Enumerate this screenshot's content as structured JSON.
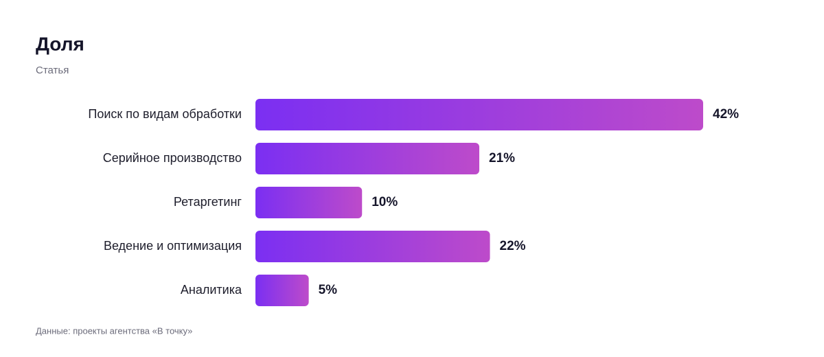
{
  "chart_data": {
    "type": "bar",
    "orientation": "horizontal",
    "title": "Доля",
    "subtitle": "Статья",
    "categories": [
      "Поиск по видам обработки",
      "Серийное производство",
      "Ретаргетинг",
      "Ведение и оптимизация",
      "Аналитика"
    ],
    "values": [
      42,
      21,
      10,
      22,
      5
    ],
    "value_labels": [
      "42%",
      "21%",
      "10%",
      "22%",
      "5%"
    ],
    "gradient": [
      "#7b2ff2",
      "#bd4bca"
    ],
    "source": "Данные: проекты агентства «В точку»"
  }
}
